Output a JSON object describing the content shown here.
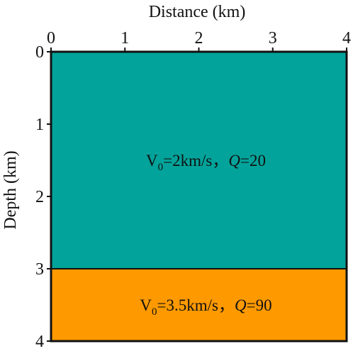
{
  "axes": {
    "x_title": "Distance (km)",
    "y_title": "Depth (km)",
    "x_ticks": [
      "0",
      "1",
      "2",
      "3",
      "4"
    ],
    "y_ticks": [
      "0",
      "1",
      "2",
      "3",
      "4"
    ],
    "x_range": [
      0,
      4
    ],
    "y_range": [
      0,
      4
    ],
    "x_axis_position": "top",
    "y_axis_direction": "downward"
  },
  "layers": [
    {
      "top_depth": 0,
      "bottom_depth": 3,
      "color": "#02A39A",
      "label": {
        "v_symbol": "V",
        "v_subscript": "0",
        "v_value": "=2km/s，",
        "q_symbol": "Q",
        "q_value": "=20"
      }
    },
    {
      "top_depth": 3,
      "bottom_depth": 4,
      "color": "#FF9900",
      "label": {
        "v_symbol": "V",
        "v_subscript": "0",
        "v_value": "=3.5km/s，",
        "q_symbol": "Q",
        "q_value": "=90"
      }
    }
  ]
}
